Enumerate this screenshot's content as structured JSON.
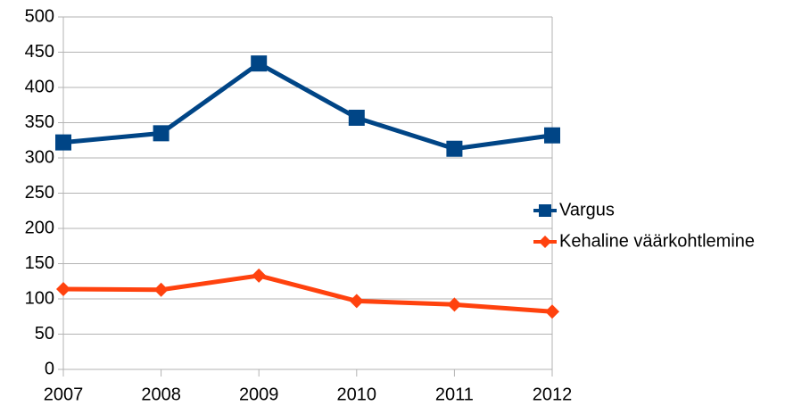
{
  "chart_data": {
    "type": "line",
    "categories": [
      "2007",
      "2008",
      "2009",
      "2010",
      "2011",
      "2012"
    ],
    "series": [
      {
        "name": "Vargus",
        "color": "#004586",
        "marker": "square",
        "values": [
          322,
          335,
          434,
          357,
          313,
          332
        ]
      },
      {
        "name": "Kehaline väärkohtlemine",
        "color": "#ff420e",
        "marker": "diamond",
        "values": [
          114,
          113,
          133,
          97,
          92,
          82
        ]
      }
    ],
    "ylim": [
      0,
      500
    ],
    "yticks": [
      0,
      50,
      100,
      150,
      200,
      250,
      300,
      350,
      400,
      450,
      500
    ],
    "grid": true,
    "legend": "right"
  }
}
